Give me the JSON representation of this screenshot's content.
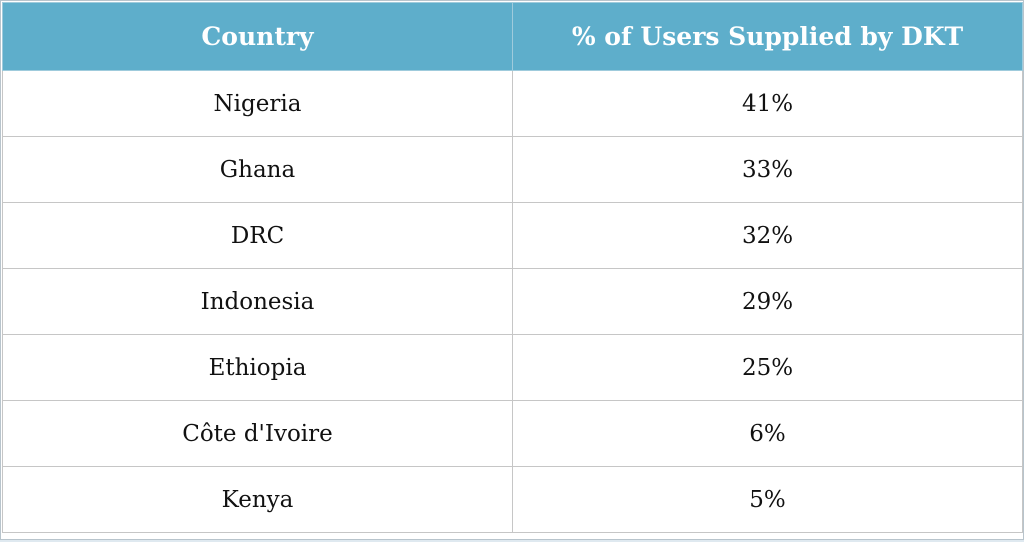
{
  "table": {
    "headers": [
      "Country",
      "% of Users Supplied by DKT"
    ],
    "rows": [
      {
        "country": "Nigeria",
        "percent": "41%"
      },
      {
        "country": "Ghana",
        "percent": "33%"
      },
      {
        "country": "DRC",
        "percent": "32%"
      },
      {
        "country": "Indonesia",
        "percent": "29%"
      },
      {
        "country": "Ethiopia",
        "percent": "25%"
      },
      {
        "country": "Côte d'Ivoire",
        "percent": "6%"
      },
      {
        "country": "Kenya",
        "percent": "5%"
      }
    ]
  },
  "colors": {
    "header_bg": "#5eaecb",
    "header_text": "#ffffff",
    "border": "#c6c6c6",
    "page_bg": "#dfe9f0"
  }
}
